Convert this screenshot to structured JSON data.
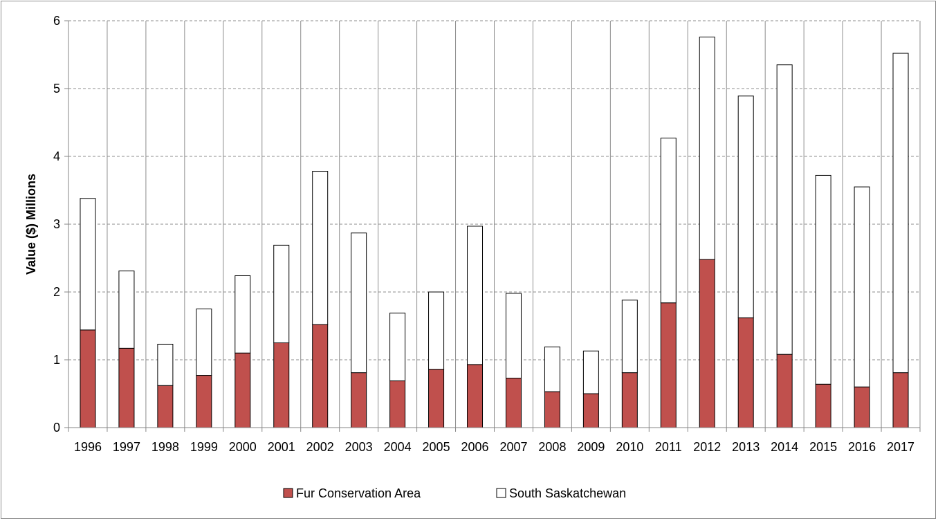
{
  "chart_data": {
    "type": "bar",
    "stacked": true,
    "title": "",
    "xlabel": "",
    "ylabel": "Value ($) Millions",
    "ylim": [
      0,
      6
    ],
    "yticks": [
      "0",
      "1",
      "2",
      "3",
      "4",
      "5",
      "6"
    ],
    "grid": true,
    "legend_position": "bottom",
    "categories": [
      "1996",
      "1997",
      "1998",
      "1999",
      "2000",
      "2001",
      "2002",
      "2003",
      "2004",
      "2005",
      "2006",
      "2007",
      "2008",
      "2009",
      "2010",
      "2011",
      "2012",
      "2013",
      "2014",
      "2015",
      "2016",
      "2017"
    ],
    "series": [
      {
        "name": "Fur Conservation Area",
        "color": "#c0504d",
        "values": [
          1.44,
          1.17,
          0.62,
          0.77,
          1.1,
          1.25,
          1.52,
          0.81,
          0.69,
          0.86,
          0.93,
          0.73,
          0.53,
          0.5,
          0.81,
          1.84,
          2.48,
          1.62,
          1.08,
          0.64,
          0.6,
          0.81
        ]
      },
      {
        "name": "South Saskatchewan",
        "color": "#ffffff",
        "values": [
          1.94,
          1.14,
          0.61,
          0.98,
          1.14,
          1.44,
          2.26,
          2.06,
          1.0,
          1.14,
          2.04,
          1.25,
          0.66,
          0.63,
          1.07,
          2.43,
          3.28,
          3.27,
          4.27,
          3.08,
          2.95,
          4.71
        ]
      }
    ]
  }
}
